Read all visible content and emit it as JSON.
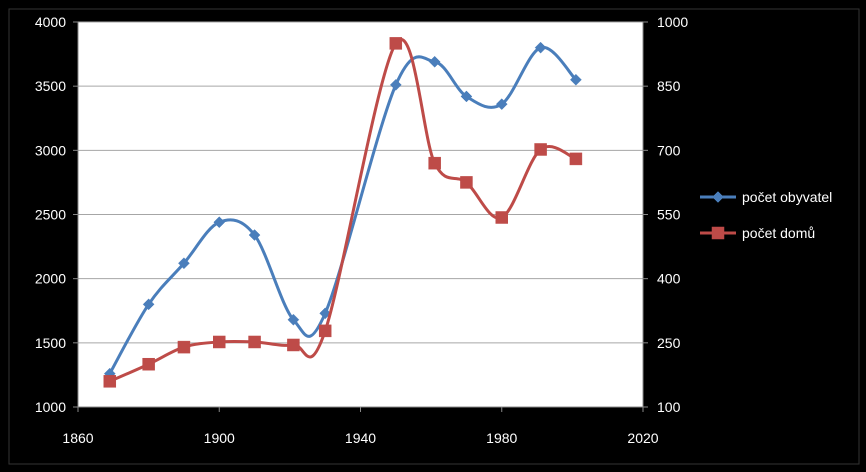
{
  "chart_data": {
    "type": "line",
    "smoothed": true,
    "grid": true,
    "legend_position": "right",
    "x_axis": {
      "min": 1860,
      "max": 2020,
      "ticks": [
        1860,
        1900,
        1940,
        1980,
        2020
      ],
      "tick_labels": [
        "1860",
        "1900",
        "1940",
        "1980",
        "2020"
      ]
    },
    "y_axis_left": {
      "min": 1000,
      "max": 4000,
      "ticks": [
        1000,
        1500,
        2000,
        2500,
        3000,
        3500,
        4000
      ],
      "tick_labels": [
        "1000",
        "1500",
        "2000",
        "2500",
        "3000",
        "3500",
        "4000"
      ]
    },
    "y_axis_right": {
      "min": 100,
      "max": 1000,
      "ticks": [
        100,
        250,
        400,
        550,
        700,
        850,
        1000
      ],
      "tick_labels": [
        "100",
        "250",
        "400",
        "550",
        "700",
        "850",
        "1000"
      ]
    },
    "series": [
      {
        "name": "počet obyvatel",
        "axis": "left",
        "color": "#4a7ebb",
        "marker": "diamond",
        "x": [
          1869,
          1880,
          1890,
          1900,
          1910,
          1921,
          1930,
          1950,
          1961,
          1970,
          1980,
          1991,
          2001
        ],
        "y": [
          1260,
          1800,
          2120,
          2440,
          2340,
          1680,
          1730,
          3510,
          3690,
          3420,
          3360,
          3800,
          3550
        ]
      },
      {
        "name": "počet domů",
        "axis": "right",
        "color": "#be4b48",
        "marker": "square",
        "x": [
          1869,
          1880,
          1890,
          1900,
          1910,
          1921,
          1930,
          1950,
          1961,
          1970,
          1980,
          1991,
          2001
        ],
        "y": [
          160,
          200,
          240,
          252,
          252,
          245,
          278,
          950,
          670,
          625,
          543,
          702,
          680
        ]
      }
    ]
  }
}
